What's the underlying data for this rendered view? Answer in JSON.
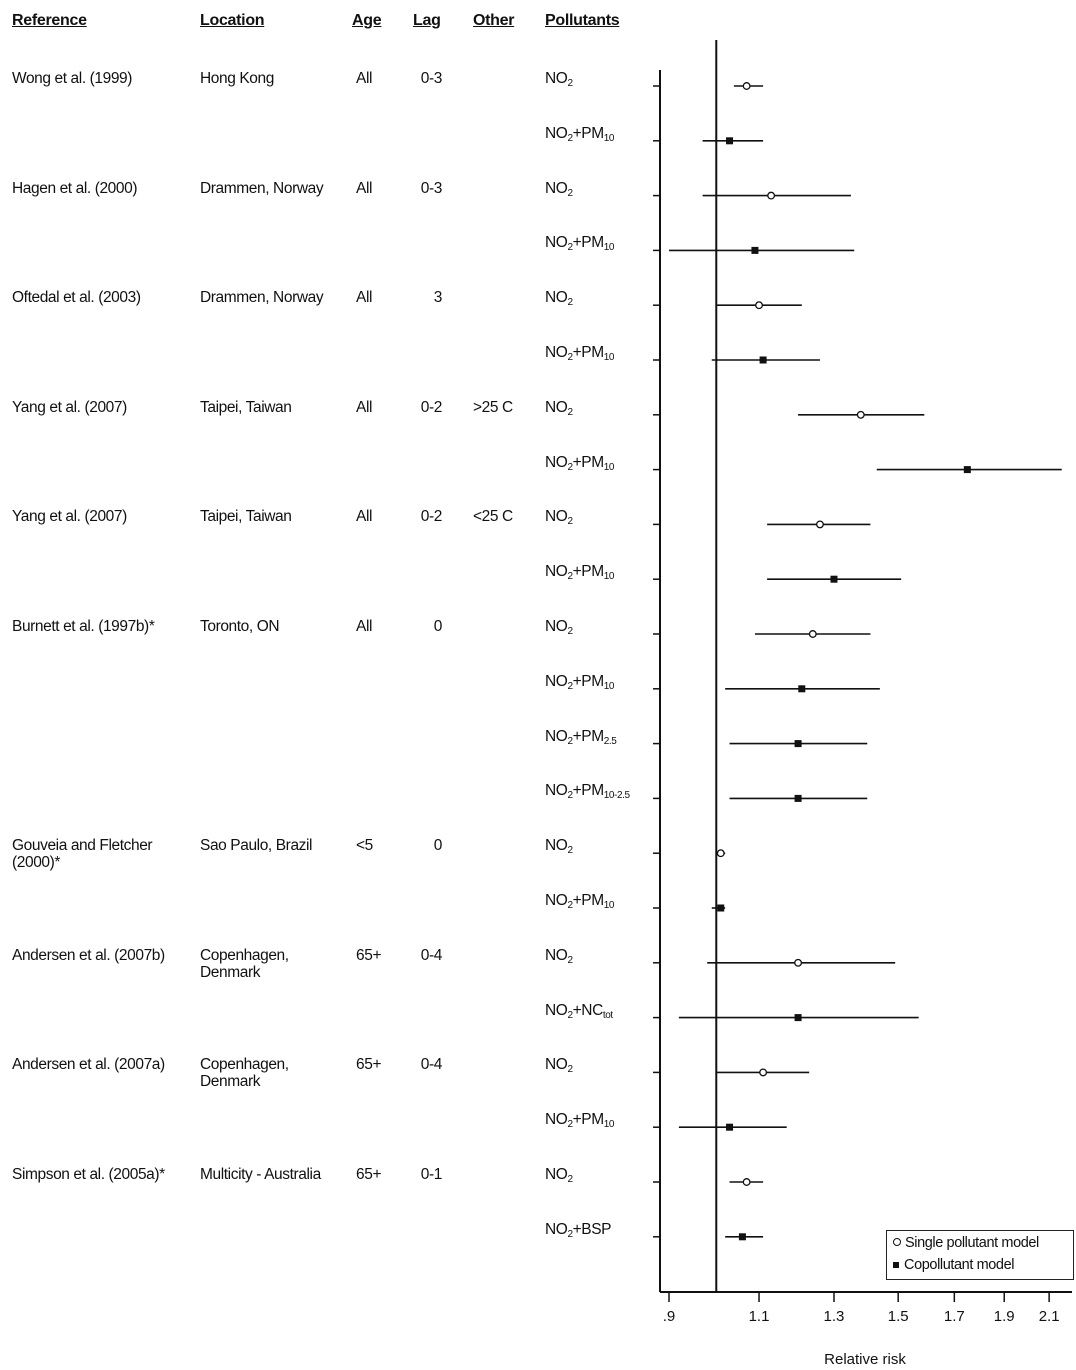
{
  "headers": {
    "reference": "Reference",
    "location": "Location",
    "age": "Age",
    "lag": "Lag",
    "other": "Other",
    "pollutants": "Pollutants"
  },
  "studies": [
    {
      "reference": "Wong et al. (1999)",
      "location": "Hong Kong",
      "age": "All",
      "lag": "0-3",
      "other": ""
    },
    {
      "reference": "Hagen et al. (2000)",
      "location": "Drammen, Norway",
      "age": "All",
      "lag": "0-3",
      "other": ""
    },
    {
      "reference": "Oftedal et al. (2003)",
      "location": "Drammen, Norway",
      "age": "All",
      "lag": "3",
      "other": ""
    },
    {
      "reference": "Yang et al. (2007)",
      "location": "Taipei, Taiwan",
      "age": "All",
      "lag": "0-2",
      "other": ">25 C"
    },
    {
      "reference": "Yang et al. (2007)",
      "location": "Taipei, Taiwan",
      "age": "All",
      "lag": "0-2",
      "other": "<25 C"
    },
    {
      "reference": "Burnett et al. (1997b)*",
      "location": "Toronto, ON",
      "age": "All",
      "lag": "0",
      "other": ""
    },
    {
      "reference": "Gouveia and Fletcher (2000)*",
      "location": "Sao Paulo, Brazil",
      "age": "<5",
      "lag": "0",
      "other": ""
    },
    {
      "reference": "Andersen et al. (2007b)",
      "location": "Copenhagen, Denmark",
      "age": "65+",
      "lag": "0-4",
      "other": ""
    },
    {
      "reference": "Andersen et al. (2007a)",
      "location": "Copenhagen, Denmark",
      "age": "65+",
      "lag": "0-4",
      "other": ""
    },
    {
      "reference": "Simpson et al. (2005a)*",
      "location": "Multicity - Australia",
      "age": "65+",
      "lag": "0-1",
      "other": ""
    }
  ],
  "legend": {
    "single": "Single pollutant model",
    "copollutant": "Copollutant model"
  },
  "colors": {
    "ink": "#111111",
    "background": "#ffffff"
  },
  "chart_data": {
    "type": "scatter",
    "subtype": "forest-plot",
    "title": "",
    "xlabel": "Relative risk",
    "ylabel": "",
    "scale": "log",
    "xlim": [
      0.89,
      2.2
    ],
    "xticks": [
      0.9,
      1.1,
      1.3,
      1.5,
      1.7,
      1.9,
      2.1
    ],
    "xtick_labels": [
      ".9",
      "1.1",
      "1.3",
      "1.5",
      "1.7",
      "1.9",
      "2.1"
    ],
    "reference_line": 1.0,
    "grid": false,
    "legend_position": "bottom-right",
    "series": [
      {
        "name": "Single pollutant model",
        "marker": "open-circle"
      },
      {
        "name": "Copollutant model",
        "marker": "filled-square"
      }
    ],
    "rows": [
      {
        "study": 0,
        "pollutant": [
          "NO",
          "2",
          "",
          ""
        ],
        "model": "single",
        "rr": 1.07,
        "lo": 1.04,
        "hi": 1.11
      },
      {
        "study": 0,
        "pollutant": [
          "NO",
          "2",
          "+PM",
          "10"
        ],
        "model": "copollutant",
        "rr": 1.03,
        "lo": 0.97,
        "hi": 1.11
      },
      {
        "study": 1,
        "pollutant": [
          "NO",
          "2",
          "",
          ""
        ],
        "model": "single",
        "rr": 1.13,
        "lo": 0.97,
        "hi": 1.35
      },
      {
        "study": 1,
        "pollutant": [
          "NO",
          "2",
          "+PM",
          "10"
        ],
        "model": "copollutant",
        "rr": 1.09,
        "lo": 0.9,
        "hi": 1.36
      },
      {
        "study": 2,
        "pollutant": [
          "NO",
          "2",
          "",
          ""
        ],
        "model": "single",
        "rr": 1.1,
        "lo": 1.0,
        "hi": 1.21
      },
      {
        "study": 2,
        "pollutant": [
          "NO",
          "2",
          "+PM",
          "10"
        ],
        "model": "copollutant",
        "rr": 1.11,
        "lo": 0.99,
        "hi": 1.26
      },
      {
        "study": 3,
        "pollutant": [
          "NO",
          "2",
          "",
          ""
        ],
        "model": "single",
        "rr": 1.38,
        "lo": 1.2,
        "hi": 1.59
      },
      {
        "study": 3,
        "pollutant": [
          "NO",
          "2",
          "+PM",
          "10"
        ],
        "model": "copollutant",
        "rr": 1.75,
        "lo": 1.43,
        "hi": 2.16
      },
      {
        "study": 4,
        "pollutant": [
          "NO",
          "2",
          "",
          ""
        ],
        "model": "single",
        "rr": 1.26,
        "lo": 1.12,
        "hi": 1.41
      },
      {
        "study": 4,
        "pollutant": [
          "NO",
          "2",
          "+PM",
          "10"
        ],
        "model": "copollutant",
        "rr": 1.3,
        "lo": 1.12,
        "hi": 1.51
      },
      {
        "study": 5,
        "pollutant": [
          "NO",
          "2",
          "",
          ""
        ],
        "model": "single",
        "rr": 1.24,
        "lo": 1.09,
        "hi": 1.41
      },
      {
        "study": 5,
        "pollutant": [
          "NO",
          "2",
          "+PM",
          "10"
        ],
        "model": "copollutant",
        "rr": 1.21,
        "lo": 1.02,
        "hi": 1.44
      },
      {
        "study": 5,
        "pollutant": [
          "NO",
          "2",
          "+PM",
          "2.5"
        ],
        "model": "copollutant",
        "rr": 1.2,
        "lo": 1.03,
        "hi": 1.4
      },
      {
        "study": 5,
        "pollutant": [
          "NO",
          "2",
          "+PM",
          "10-2.5"
        ],
        "model": "copollutant",
        "rr": 1.2,
        "lo": 1.03,
        "hi": 1.4
      },
      {
        "study": 6,
        "pollutant": [
          "NO",
          "2",
          "",
          ""
        ],
        "model": "single",
        "rr": 1.01,
        "lo": 1.0,
        "hi": 1.02
      },
      {
        "study": 6,
        "pollutant": [
          "NO",
          "2",
          "+PM",
          "10"
        ],
        "model": "copollutant",
        "rr": 1.01,
        "lo": 0.99,
        "hi": 1.02
      },
      {
        "study": 7,
        "pollutant": [
          "NO",
          "2",
          "",
          ""
        ],
        "model": "single",
        "rr": 1.2,
        "lo": 0.98,
        "hi": 1.49
      },
      {
        "study": 7,
        "pollutant": [
          "NO",
          "2",
          "+NC",
          "tot"
        ],
        "model": "copollutant",
        "rr": 1.2,
        "lo": 0.92,
        "hi": 1.57
      },
      {
        "study": 8,
        "pollutant": [
          "NO",
          "2",
          "",
          ""
        ],
        "model": "single",
        "rr": 1.11,
        "lo": 1.0,
        "hi": 1.23
      },
      {
        "study": 8,
        "pollutant": [
          "NO",
          "2",
          "+PM",
          "10"
        ],
        "model": "copollutant",
        "rr": 1.03,
        "lo": 0.92,
        "hi": 1.17
      },
      {
        "study": 9,
        "pollutant": [
          "NO",
          "2",
          "",
          ""
        ],
        "model": "single",
        "rr": 1.07,
        "lo": 1.03,
        "hi": 1.11
      },
      {
        "study": 9,
        "pollutant": [
          "NO",
          "2",
          "+BSP",
          ""
        ],
        "model": "copollutant",
        "rr": 1.06,
        "lo": 1.02,
        "hi": 1.11
      }
    ]
  }
}
